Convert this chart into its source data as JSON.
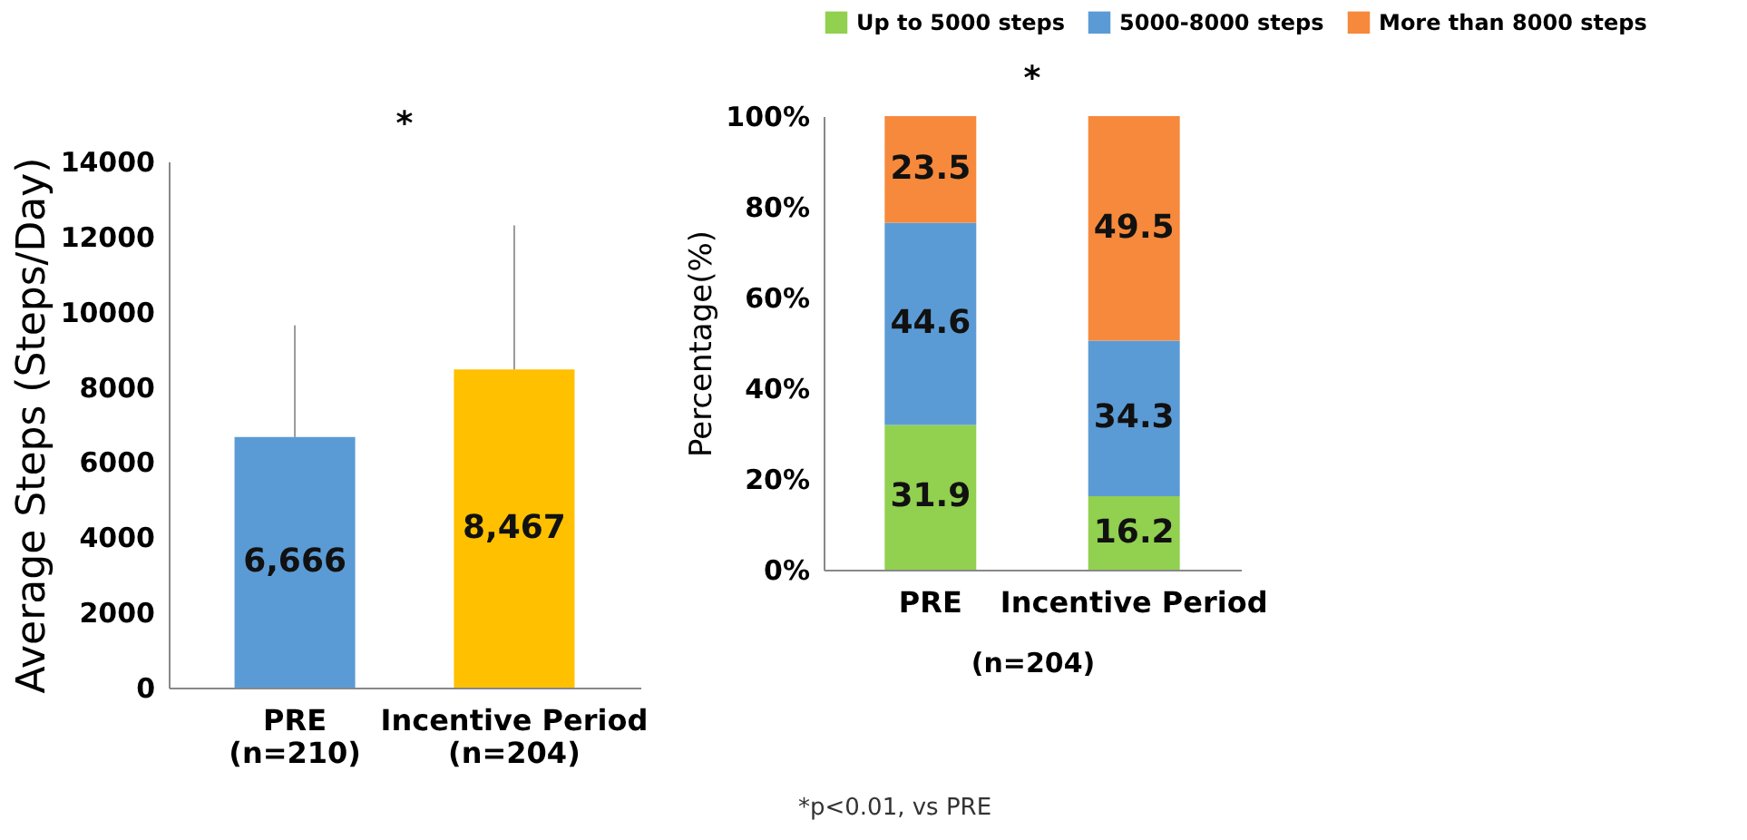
{
  "chart_data": [
    {
      "type": "bar",
      "ylabel": "Average Steps (Steps/Day)",
      "categories": [
        "PRE\n(n=210)",
        "Incentive Period\n(n=204)"
      ],
      "values": [
        6666,
        8467
      ],
      "colors": [
        "#5b9bd5",
        "#ffc000"
      ],
      "value_labels": [
        "6,666",
        "8,467"
      ],
      "errors": [
        [
          6666,
          9640
        ],
        [
          8467,
          12300
        ]
      ],
      "ylim": [
        0,
        14000
      ],
      "yticks": [
        0,
        2000,
        4000,
        6000,
        8000,
        10000,
        12000,
        14000
      ],
      "grid": false,
      "annotations": [
        "*",
        "*p<0.01, vs PRE"
      ]
    },
    {
      "type": "bar",
      "stacked": true,
      "ylabel": "Percentage(%)",
      "xlabel": "(n=204)",
      "categories": [
        "PRE",
        "Incentive Period"
      ],
      "series": [
        {
          "name": "Up to 5000 steps",
          "color": "#92d050",
          "values": [
            31.9,
            16.2
          ]
        },
        {
          "name": "5000-8000 steps",
          "color": "#5b9bd5",
          "values": [
            44.6,
            34.3
          ]
        },
        {
          "name": "More than 8000 steps",
          "color": "#f6893b",
          "values": [
            23.5,
            49.5
          ]
        }
      ],
      "ylim": [
        0,
        100
      ],
      "yticks": [
        {
          "value": 0,
          "label": "0%"
        },
        {
          "value": 20,
          "label": "20%"
        },
        {
          "value": 40,
          "label": "40%"
        },
        {
          "value": 60,
          "label": "60%"
        },
        {
          "value": 80,
          "label": "80%"
        },
        {
          "value": 100,
          "label": "100%"
        }
      ],
      "grid": false,
      "legend": "top",
      "data_labels": true,
      "annotations": [
        "*"
      ]
    }
  ]
}
